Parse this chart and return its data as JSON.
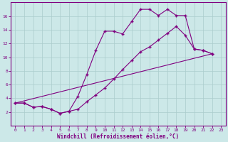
{
  "xlabel": "Windchill (Refroidissement éolien,°C)",
  "bg_color": "#cce8e8",
  "grid_color": "#aacccc",
  "line_color": "#800080",
  "xlim": [
    -0.5,
    23.5
  ],
  "ylim": [
    0,
    18
  ],
  "xticks": [
    0,
    1,
    2,
    3,
    4,
    5,
    6,
    7,
    8,
    9,
    10,
    11,
    12,
    13,
    14,
    15,
    16,
    17,
    18,
    19,
    20,
    21,
    22,
    23
  ],
  "yticks": [
    2,
    4,
    6,
    8,
    10,
    12,
    14,
    16
  ],
  "line1_x": [
    0,
    1,
    2,
    3,
    4,
    5,
    6,
    7,
    8,
    9,
    10,
    11,
    12,
    13,
    14,
    15,
    16,
    17,
    18,
    19,
    20,
    21,
    22,
    23
  ],
  "line1_y": [
    3.3,
    3.3,
    2.7,
    2.8,
    2.4,
    1.8,
    2.1,
    4.3,
    7.5,
    11.0,
    13.8,
    13.8,
    13.4,
    15.2,
    17.0,
    17.0,
    16.1,
    17.0,
    16.1,
    16.1,
    11.2,
    11.0,
    10.5,
    null
  ],
  "line2_x": [
    0,
    1,
    2,
    3,
    4,
    5,
    6,
    7,
    8,
    9,
    10,
    11,
    12,
    13,
    14,
    15,
    16,
    17,
    18,
    19,
    20,
    21,
    22,
    23
  ],
  "line2_y": [
    3.3,
    3.3,
    2.7,
    2.8,
    2.4,
    1.8,
    2.1,
    2.4,
    3.5,
    4.5,
    5.5,
    6.8,
    8.2,
    9.5,
    10.8,
    11.5,
    12.5,
    13.5,
    14.5,
    13.2,
    11.2,
    11.0,
    10.5,
    null
  ],
  "line3_x": [
    0,
    22
  ],
  "line3_y": [
    3.3,
    10.5
  ]
}
